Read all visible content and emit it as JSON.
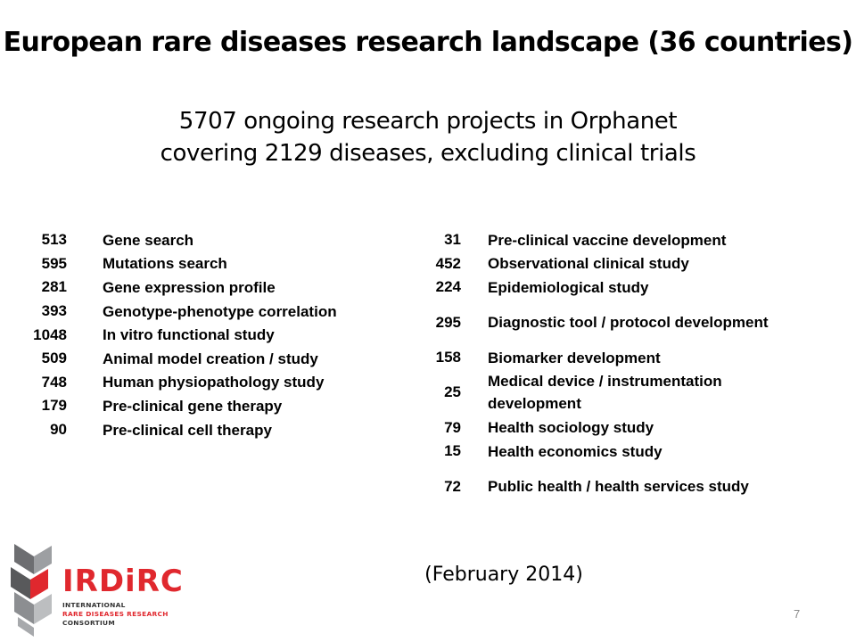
{
  "title": "European rare diseases research landscape (36 countries)",
  "subtitle": {
    "line1": "5707 ongoing research projects in Orphanet",
    "line2": "covering 2129 diseases, excluding clinical trials"
  },
  "left_items": [
    {
      "count": "513",
      "label": "Gene search"
    },
    {
      "count": "595",
      "label": "Mutations search"
    },
    {
      "count": "281",
      "label": "Gene expression profile"
    },
    {
      "count": "393",
      "label": "Genotype-phenotype correlation"
    },
    {
      "count": "1048",
      "label": "In vitro functional study"
    },
    {
      "count": "509",
      "label": "Animal model creation / study"
    },
    {
      "count": "748",
      "label": "Human physiopathology study"
    },
    {
      "count": "179",
      "label": "Pre-clinical gene therapy"
    },
    {
      "count": "90",
      "label": "Pre-clinical cell therapy"
    }
  ],
  "right_items": [
    {
      "count": "31",
      "label": "Pre-clinical vaccine development"
    },
    {
      "count": "452",
      "label": "Observational clinical study"
    },
    {
      "count": "224",
      "label": "Epidemiological study"
    },
    {
      "count": "295",
      "label": "Diagnostic tool / protocol development"
    },
    {
      "count": "158",
      "label": "Biomarker development"
    },
    {
      "count": "25",
      "label": "Medical device / instrumentation development"
    },
    {
      "count": "79",
      "label": "Health sociology study"
    },
    {
      "count": "15",
      "label": "Health economics study"
    },
    {
      "count": "72",
      "label": "Public health / health services study"
    }
  ],
  "date_note": "(February 2014)",
  "page_number": "7",
  "logo": {
    "name": "IRDiRC",
    "line1": "INTERNATIONAL",
    "line2": "RARE DISEASES RESEARCH",
    "line3": "CONSORTIUM",
    "brand_color": "#e0282e"
  }
}
